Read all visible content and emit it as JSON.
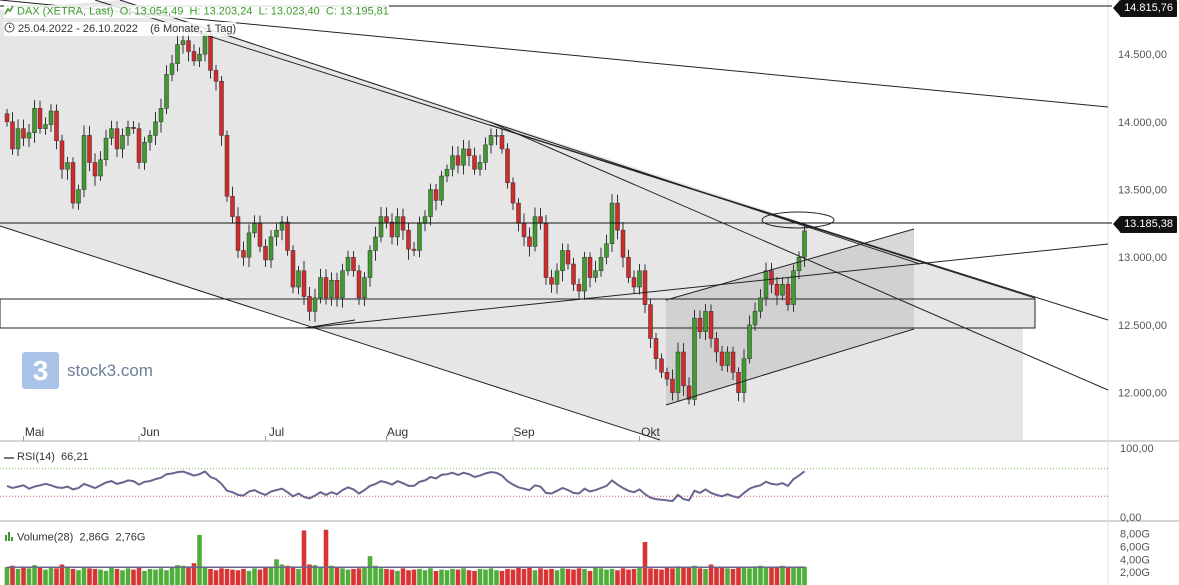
{
  "legend": {
    "title": "DAX (XETRA, Last)",
    "open": "O: 13.054,49",
    "high": "H: 13.203,24",
    "low": "L: 13.023,40",
    "close": "C: 13.195,81",
    "range": "25.04.2022 - 26.10.2022",
    "period": "(6 Monate, 1 Tag)"
  },
  "badges": {
    "top": "14.815,76",
    "current": "13.185,38"
  },
  "watermark": "stock3.com",
  "rsi_legend": {
    "label": "RSI(14)",
    "value": "66,21"
  },
  "volume_legend": {
    "label": "Volume(28)",
    "value1": "2,86G",
    "value2": "2,76G"
  },
  "colors": {
    "up": "#3f9b2e",
    "down": "#d12b2b",
    "rsi": "#6a6590",
    "channel": "#dedede"
  },
  "chart_data": [
    {
      "type": "candlestick",
      "title": "DAX (XETRA, Last)",
      "ylim": [
        11650,
        14900
      ],
      "y_ticks": [
        "12.000,00",
        "12.500,00",
        "13.000,00",
        "13.500,00",
        "14.000,00",
        "14.500,00"
      ],
      "x_ticks": [
        "Mai",
        "Jun",
        "Jul",
        "Aug",
        "Sep",
        "Okt"
      ],
      "price_levels": [
        "14.815,76",
        "13.185,38"
      ],
      "closes": [
        14000,
        13800,
        13950,
        13880,
        13920,
        14100,
        13950,
        13980,
        14080,
        13860,
        13650,
        13700,
        13400,
        13500,
        13900,
        13700,
        13600,
        13720,
        13880,
        13950,
        13800,
        13900,
        13960,
        13950,
        13700,
        13850,
        13900,
        14000,
        14100,
        14350,
        14430,
        14570,
        14600,
        14520,
        14450,
        14500,
        14650,
        14380,
        14300,
        13900,
        13450,
        13300,
        13050,
        13000,
        13180,
        13250,
        13080,
        12980,
        13150,
        13200,
        13260,
        13050,
        12780,
        12900,
        12710,
        12600,
        12700,
        12850,
        12700,
        12830,
        12700,
        12900,
        13000,
        12900,
        12700,
        12850,
        13050,
        13150,
        13300,
        13260,
        13150,
        13300,
        13200,
        13060,
        13050,
        13250,
        13300,
        13500,
        13420,
        13600,
        13650,
        13750,
        13680,
        13800,
        13750,
        13650,
        13700,
        13830,
        13900,
        13900,
        13800,
        13550,
        13400,
        13250,
        13150,
        13080,
        13300,
        13250,
        12850,
        12800,
        12900,
        13050,
        12950,
        12800,
        12750,
        13000,
        12850,
        12900,
        13000,
        13100,
        13400,
        13200,
        13000,
        12850,
        12780,
        12900,
        12650,
        12400,
        12250,
        12150,
        12100,
        12000,
        12300,
        12050,
        11950,
        12550,
        12450,
        12600,
        12400,
        12300,
        12200,
        12300,
        12150,
        12000,
        12250,
        12500,
        12600,
        12700,
        12900,
        12800,
        12720,
        12800,
        12650,
        12900,
        13000,
        13195
      ]
    },
    {
      "type": "line",
      "title": "RSI(14)",
      "series": [
        {
          "name": "RSI(14)",
          "values": [
            45,
            42,
            44,
            46,
            41,
            44,
            46,
            48,
            46,
            43,
            42,
            44,
            40,
            42,
            48,
            45,
            42,
            46,
            50,
            52,
            48,
            50,
            53,
            52,
            47,
            51,
            52,
            55,
            57,
            62,
            63,
            65,
            66,
            63,
            60,
            62,
            66,
            58,
            55,
            48,
            38,
            36,
            32,
            31,
            37,
            39,
            35,
            32,
            37,
            39,
            41,
            36,
            30,
            34,
            29,
            27,
            31,
            36,
            32,
            36,
            33,
            39,
            43,
            40,
            34,
            39,
            45,
            48,
            52,
            50,
            47,
            52,
            49,
            45,
            45,
            51,
            53,
            58,
            56,
            61,
            62,
            64,
            61,
            64,
            62,
            58,
            60,
            63,
            65,
            64,
            60,
            52,
            47,
            43,
            41,
            39,
            46,
            44,
            35,
            34,
            38,
            42,
            39,
            35,
            34,
            41,
            37,
            39,
            42,
            45,
            53,
            47,
            42,
            38,
            36,
            40,
            33,
            28,
            26,
            25,
            24,
            23,
            32,
            26,
            24,
            38,
            35,
            40,
            35,
            32,
            30,
            33,
            30,
            28,
            35,
            41,
            44,
            46,
            51,
            48,
            47,
            49,
            45,
            55,
            60,
            66.21
          ]
        }
      ],
      "ylim": [
        0,
        100
      ],
      "y_ticks": [
        "100,00",
        "0,00"
      ]
    },
    {
      "type": "bar",
      "title": "Volume(28)",
      "unit": "G",
      "values": [
        2.8,
        3.0,
        2.5,
        2.9,
        2.6,
        3.1,
        2.7,
        2.4,
        2.8,
        2.6,
        3.2,
        2.9,
        2.5,
        2.3,
        2.7,
        2.6,
        2.5,
        2.4,
        2.2,
        2.8,
        2.5,
        2.3,
        2.6,
        2.4,
        2.7,
        2.2,
        2.5,
        2.4,
        2.6,
        2.3,
        2.8,
        3.1,
        3.0,
        2.9,
        3.4,
        7.8,
        2.8,
        2.5,
        2.3,
        2.6,
        2.5,
        2.4,
        2.3,
        2.5,
        2.2,
        2.6,
        2.4,
        2.7,
        2.8,
        4.0,
        3.2,
        3.0,
        2.9,
        2.5,
        8.5,
        3.2,
        3.1,
        2.8,
        8.6,
        3.0,
        2.7,
        2.6,
        2.4,
        2.5,
        2.6,
        2.8,
        4.5,
        3.0,
        2.6,
        2.5,
        2.4,
        2.2,
        2.6,
        2.3,
        2.4,
        2.5,
        2.3,
        2.6,
        2.2,
        2.4,
        2.3,
        2.5,
        2.4,
        2.6,
        2.3,
        2.2,
        2.5,
        2.4,
        2.6,
        2.3,
        2.2,
        2.5,
        2.4,
        2.7,
        2.5,
        2.8,
        2.3,
        2.6,
        2.4,
        2.5,
        2.3,
        2.6,
        2.5,
        2.4,
        2.6,
        2.5,
        2.2,
        2.7,
        2.6,
        2.4,
        2.5,
        2.3,
        2.6,
        2.4,
        2.5,
        2.7,
        6.7,
        2.6,
        2.5,
        2.4,
        2.8,
        2.6,
        2.9,
        2.7,
        2.8,
        3.0,
        2.6,
        2.5,
        3.2,
        2.8,
        2.7,
        2.6,
        2.5,
        2.8,
        2.7,
        2.6,
        2.9,
        3.0,
        2.8,
        2.7,
        2.9,
        3.0,
        2.8,
        2.7,
        2.9,
        2.86
      ],
      "ylim": [
        0,
        9.5
      ],
      "y_ticks": [
        "8,00G",
        "6,00G",
        "4,00G",
        "2,00G"
      ]
    }
  ]
}
